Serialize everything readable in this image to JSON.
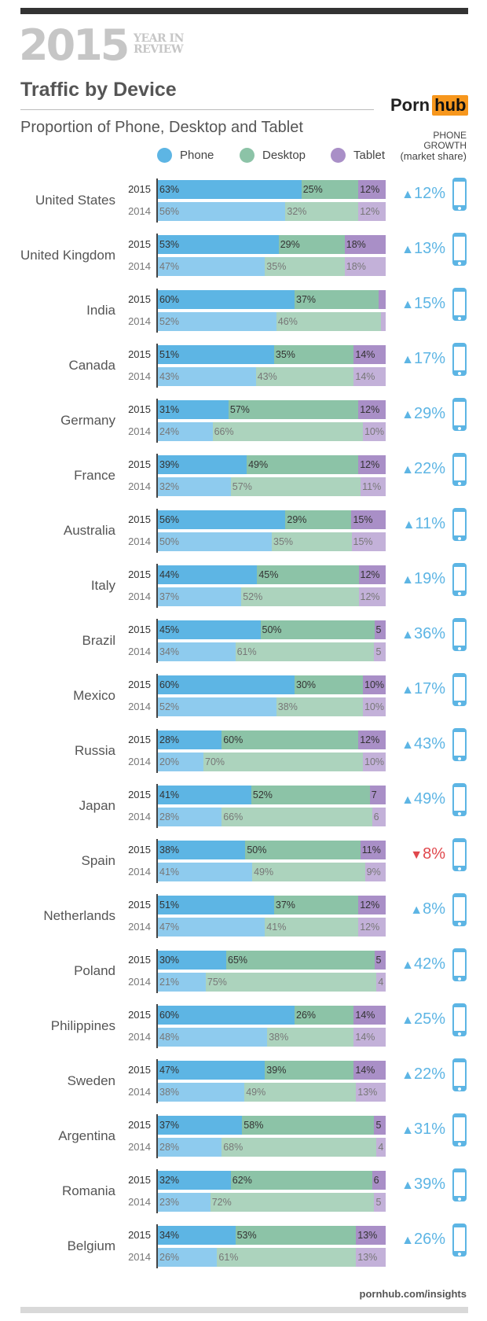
{
  "header": {
    "big_year": "2015",
    "year_in_review": [
      "YEAR IN",
      "REVIEW"
    ],
    "title": "Traffic by Device",
    "subtitle": "Proportion of Phone, Desktop and Tablet",
    "logo": {
      "left": "Porn",
      "right": "hub"
    },
    "growth_header": [
      "PHONE",
      "GROWTH",
      "(market share)"
    ]
  },
  "footer": "pornhub.com/insights",
  "colors": {
    "phone_2015": "#5db5e4",
    "phone_2014": "#8ecbee",
    "desktop_2015": "#8cc3a7",
    "desktop_2014": "#acd3bd",
    "tablet_2015": "#a98fc7",
    "tablet_2014": "#c3b1d9",
    "growth_up": "#5db5e4",
    "growth_down": "#e0474c",
    "logo_orange": "#f7971d"
  },
  "chart_data": {
    "type": "bar",
    "stacked": true,
    "orientation": "horizontal",
    "legend": {
      "placement": "top",
      "entries": [
        "Phone",
        "Desktop",
        "Tablet"
      ]
    },
    "years": [
      "2015",
      "2014"
    ],
    "unit": "%",
    "rows": [
      {
        "country": "United States",
        "y2015": [
          63,
          25,
          12
        ],
        "y2014": [
          56,
          32,
          12
        ],
        "l2015": [
          "63%",
          "25%",
          "12%"
        ],
        "l2014": [
          "56%",
          "32%",
          "12%"
        ],
        "growth": {
          "dir": "up",
          "text": "12%"
        }
      },
      {
        "country": "United Kingdom",
        "y2015": [
          53,
          29,
          18
        ],
        "y2014": [
          47,
          35,
          18
        ],
        "l2015": [
          "53%",
          "29%",
          "18%"
        ],
        "l2014": [
          "47%",
          "35%",
          "18%"
        ],
        "growth": {
          "dir": "up",
          "text": "13%"
        }
      },
      {
        "country": "India",
        "y2015": [
          60,
          37,
          3
        ],
        "y2014": [
          52,
          46,
          2
        ],
        "l2015": [
          "60%",
          "37%",
          ""
        ],
        "l2014": [
          "52%",
          "46%",
          ""
        ],
        "growth": {
          "dir": "up",
          "text": "15%"
        }
      },
      {
        "country": "Canada",
        "y2015": [
          51,
          35,
          14
        ],
        "y2014": [
          43,
          43,
          14
        ],
        "l2015": [
          "51%",
          "35%",
          "14%"
        ],
        "l2014": [
          "43%",
          "43%",
          "14%"
        ],
        "growth": {
          "dir": "up",
          "text": "17%"
        }
      },
      {
        "country": "Germany",
        "y2015": [
          31,
          57,
          12
        ],
        "y2014": [
          24,
          66,
          10
        ],
        "l2015": [
          "31%",
          "57%",
          "12%"
        ],
        "l2014": [
          "24%",
          "66%",
          "10%"
        ],
        "growth": {
          "dir": "up",
          "text": "29%"
        }
      },
      {
        "country": "France",
        "y2015": [
          39,
          49,
          12
        ],
        "y2014": [
          32,
          57,
          11
        ],
        "l2015": [
          "39%",
          "49%",
          "12%"
        ],
        "l2014": [
          "32%",
          "57%",
          "11%"
        ],
        "growth": {
          "dir": "up",
          "text": "22%"
        }
      },
      {
        "country": "Australia",
        "y2015": [
          56,
          29,
          15
        ],
        "y2014": [
          50,
          35,
          15
        ],
        "l2015": [
          "56%",
          "29%",
          "15%"
        ],
        "l2014": [
          "50%",
          "35%",
          "15%"
        ],
        "growth": {
          "dir": "up",
          "text": "11%"
        }
      },
      {
        "country": "Italy",
        "y2015": [
          44,
          45,
          12
        ],
        "y2014": [
          37,
          52,
          12
        ],
        "l2015": [
          "44%",
          "45%",
          "12%"
        ],
        "l2014": [
          "37%",
          "52%",
          "12%"
        ],
        "growth": {
          "dir": "up",
          "text": "19%"
        }
      },
      {
        "country": "Brazil",
        "y2015": [
          45,
          50,
          5
        ],
        "y2014": [
          34,
          61,
          5
        ],
        "l2015": [
          "45%",
          "50%",
          "5"
        ],
        "l2014": [
          "34%",
          "61%",
          "5"
        ],
        "growth": {
          "dir": "up",
          "text": "36%"
        }
      },
      {
        "country": "Mexico",
        "y2015": [
          60,
          30,
          10
        ],
        "y2014": [
          52,
          38,
          10
        ],
        "l2015": [
          "60%",
          "30%",
          "10%"
        ],
        "l2014": [
          "52%",
          "38%",
          "10%"
        ],
        "growth": {
          "dir": "up",
          "text": "17%"
        }
      },
      {
        "country": "Russia",
        "y2015": [
          28,
          60,
          12
        ],
        "y2014": [
          20,
          70,
          10
        ],
        "l2015": [
          "28%",
          "60%",
          "12%"
        ],
        "l2014": [
          "20%",
          "70%",
          "10%"
        ],
        "growth": {
          "dir": "up",
          "text": "43%"
        }
      },
      {
        "country": "Japan",
        "y2015": [
          41,
          52,
          7
        ],
        "y2014": [
          28,
          66,
          6
        ],
        "l2015": [
          "41%",
          "52%",
          "7"
        ],
        "l2014": [
          "28%",
          "66%",
          "6"
        ],
        "growth": {
          "dir": "up",
          "text": "49%"
        }
      },
      {
        "country": "Spain",
        "y2015": [
          38,
          50,
          11
        ],
        "y2014": [
          41,
          49,
          9
        ],
        "l2015": [
          "38%",
          "50%",
          "11%"
        ],
        "l2014": [
          "41%",
          "49%",
          "9%"
        ],
        "growth": {
          "dir": "down",
          "text": "8%"
        }
      },
      {
        "country": "Netherlands",
        "y2015": [
          51,
          37,
          12
        ],
        "y2014": [
          47,
          41,
          12
        ],
        "l2015": [
          "51%",
          "37%",
          "12%"
        ],
        "l2014": [
          "47%",
          "41%",
          "12%"
        ],
        "growth": {
          "dir": "up",
          "text": "8%"
        }
      },
      {
        "country": "Poland",
        "y2015": [
          30,
          65,
          5
        ],
        "y2014": [
          21,
          75,
          4
        ],
        "l2015": [
          "30%",
          "65%",
          "5"
        ],
        "l2014": [
          "21%",
          "75%",
          "4"
        ],
        "growth": {
          "dir": "up",
          "text": "42%"
        }
      },
      {
        "country": "Philippines",
        "y2015": [
          60,
          26,
          14
        ],
        "y2014": [
          48,
          38,
          14
        ],
        "l2015": [
          "60%",
          "26%",
          "14%"
        ],
        "l2014": [
          "48%",
          "38%",
          "14%"
        ],
        "growth": {
          "dir": "up",
          "text": "25%"
        }
      },
      {
        "country": "Sweden",
        "y2015": [
          47,
          39,
          14
        ],
        "y2014": [
          38,
          49,
          13
        ],
        "l2015": [
          "47%",
          "39%",
          "14%"
        ],
        "l2014": [
          "38%",
          "49%",
          "13%"
        ],
        "growth": {
          "dir": "up",
          "text": "22%"
        }
      },
      {
        "country": "Argentina",
        "y2015": [
          37,
          58,
          5
        ],
        "y2014": [
          28,
          68,
          4
        ],
        "l2015": [
          "37%",
          "58%",
          "5"
        ],
        "l2014": [
          "28%",
          "68%",
          "4"
        ],
        "growth": {
          "dir": "up",
          "text": "31%"
        }
      },
      {
        "country": "Romania",
        "y2015": [
          32,
          62,
          6
        ],
        "y2014": [
          23,
          72,
          5
        ],
        "l2015": [
          "32%",
          "62%",
          "6"
        ],
        "l2014": [
          "23%",
          "72%",
          "5"
        ],
        "growth": {
          "dir": "up",
          "text": "39%"
        }
      },
      {
        "country": "Belgium",
        "y2015": [
          34,
          53,
          13
        ],
        "y2014": [
          26,
          61,
          13
        ],
        "l2015": [
          "34%",
          "53%",
          "13%"
        ],
        "l2014": [
          "26%",
          "61%",
          "13%"
        ],
        "growth": {
          "dir": "up",
          "text": "26%"
        }
      }
    ]
  }
}
